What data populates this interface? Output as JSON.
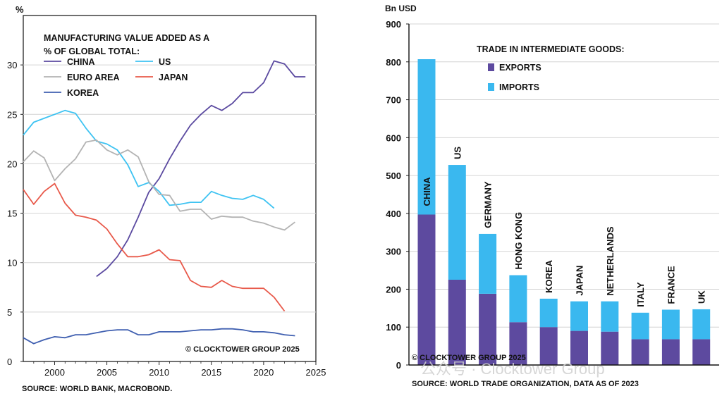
{
  "chart_data": [
    {
      "type": "line",
      "ylabel": "%",
      "title": "MANUFACTURING VALUE ADDED AS A % OF GLOBAL TOTAL:",
      "title_lines": [
        "MANUFACTURING VALUE ADDED AS A",
        "% OF GLOBAL TOTAL:"
      ],
      "xlim": [
        1997,
        2025
      ],
      "ylim": [
        0,
        35
      ],
      "x_ticks": [
        "2000",
        "2005",
        "2010",
        "2015",
        "2020",
        "2025"
      ],
      "y_ticks": [
        "0",
        "5",
        "10",
        "15",
        "20",
        "25",
        "30"
      ],
      "legend_placement": "top-left",
      "series": [
        {
          "name": "CHINA",
          "color": "#5b4aa0",
          "x": [
            2004,
            2005,
            2006,
            2007,
            2008,
            2009,
            2010,
            2011,
            2012,
            2013,
            2014,
            2015,
            2016,
            2017,
            2018,
            2019,
            2020,
            2021,
            2022,
            2023,
            2024
          ],
          "y": [
            8.6,
            9.4,
            10.6,
            12.3,
            14.6,
            17.1,
            18.5,
            20.5,
            22.3,
            23.9,
            25.0,
            25.9,
            25.4,
            26.1,
            27.2,
            27.2,
            28.2,
            30.4,
            30.1,
            28.8,
            28.8
          ]
        },
        {
          "name": "US",
          "color": "#3ec3f2",
          "x": [
            1997,
            1998,
            1999,
            2000,
            2001,
            2002,
            2003,
            2004,
            2005,
            2006,
            2007,
            2008,
            2009,
            2010,
            2011,
            2012,
            2013,
            2014,
            2015,
            2016,
            2017,
            2018,
            2019,
            2020,
            2021
          ],
          "y": [
            22.9,
            24.2,
            24.6,
            25.0,
            25.4,
            25.1,
            23.6,
            22.3,
            22.0,
            21.4,
            19.9,
            17.7,
            18.1,
            17.2,
            15.8,
            15.9,
            16.1,
            16.1,
            17.2,
            16.8,
            16.5,
            16.4,
            16.8,
            16.4,
            15.5
          ]
        },
        {
          "name": "EURO AREA",
          "color": "#b3b3b3",
          "x": [
            1997,
            1998,
            1999,
            2000,
            2001,
            2002,
            2003,
            2004,
            2005,
            2006,
            2007,
            2008,
            2009,
            2010,
            2011,
            2012,
            2013,
            2014,
            2015,
            2016,
            2017,
            2018,
            2019,
            2020,
            2021,
            2022,
            2023
          ],
          "y": [
            20.2,
            21.3,
            20.6,
            18.3,
            19.5,
            20.5,
            22.2,
            22.4,
            21.4,
            20.9,
            21.4,
            20.7,
            18.2,
            16.9,
            16.8,
            15.2,
            15.4,
            15.4,
            14.4,
            14.7,
            14.6,
            14.6,
            14.2,
            14.0,
            13.6,
            13.3,
            14.1
          ]
        },
        {
          "name": "JAPAN",
          "color": "#e8594a",
          "x": [
            1997,
            1998,
            1999,
            2000,
            2001,
            2002,
            2003,
            2004,
            2005,
            2006,
            2007,
            2008,
            2009,
            2010,
            2011,
            2012,
            2013,
            2014,
            2015,
            2016,
            2017,
            2018,
            2019,
            2020,
            2021,
            2022
          ],
          "y": [
            17.4,
            15.9,
            17.2,
            18.0,
            16.0,
            14.8,
            14.6,
            14.3,
            13.4,
            11.9,
            10.6,
            10.6,
            10.8,
            11.3,
            10.3,
            10.2,
            8.2,
            7.6,
            7.5,
            8.2,
            7.6,
            7.4,
            7.4,
            7.4,
            6.5,
            5.1
          ]
        },
        {
          "name": "KOREA",
          "color": "#3f5fb0",
          "x": [
            1997,
            1998,
            1999,
            2000,
            2001,
            2002,
            2003,
            2004,
            2005,
            2006,
            2007,
            2008,
            2009,
            2010,
            2011,
            2012,
            2013,
            2014,
            2015,
            2016,
            2017,
            2018,
            2019,
            2020,
            2021,
            2022,
            2023
          ],
          "y": [
            2.4,
            1.8,
            2.2,
            2.5,
            2.4,
            2.7,
            2.7,
            2.9,
            3.1,
            3.2,
            3.2,
            2.7,
            2.7,
            3.0,
            3.0,
            3.0,
            3.1,
            3.2,
            3.2,
            3.3,
            3.3,
            3.2,
            3.0,
            3.0,
            2.9,
            2.7,
            2.6
          ]
        }
      ],
      "watermark": "© CLOCKTOWER GROUP 2025",
      "source": "SOURCE: WORLD BANK, MACROBOND."
    },
    {
      "type": "bar",
      "stacked": true,
      "ylabel": "Bn USD",
      "title": "TRADE IN INTERMEDIATE GOODS:",
      "ylim": [
        0,
        900
      ],
      "y_ticks": [
        "0",
        "100",
        "200",
        "300",
        "400",
        "500",
        "600",
        "700",
        "800",
        "900"
      ],
      "categories": [
        "CHINA",
        "US",
        "GERMANY",
        "HONG KONG",
        "KOREA",
        "JAPAN",
        "NETHERLANDS",
        "ITALY",
        "FRANCE",
        "UK"
      ],
      "series": [
        {
          "name": "EXPORTS",
          "color": "#5d4a9f",
          "values": [
            397,
            225,
            188,
            113,
            100,
            90,
            88,
            68,
            68,
            68
          ]
        },
        {
          "name": "IMPORTS",
          "color": "#3ab8ef",
          "values": [
            410,
            303,
            158,
            124,
            75,
            78,
            80,
            70,
            78,
            79
          ]
        }
      ],
      "legend_placement": "top-left",
      "watermark": "© CLOCKTOWER GROUP 2025",
      "source": "SOURCE: WORLD TRADE ORGANIZATION, DATA AS OF 2023"
    }
  ],
  "overlay_watermark": "公众号 · Clocktower Group"
}
